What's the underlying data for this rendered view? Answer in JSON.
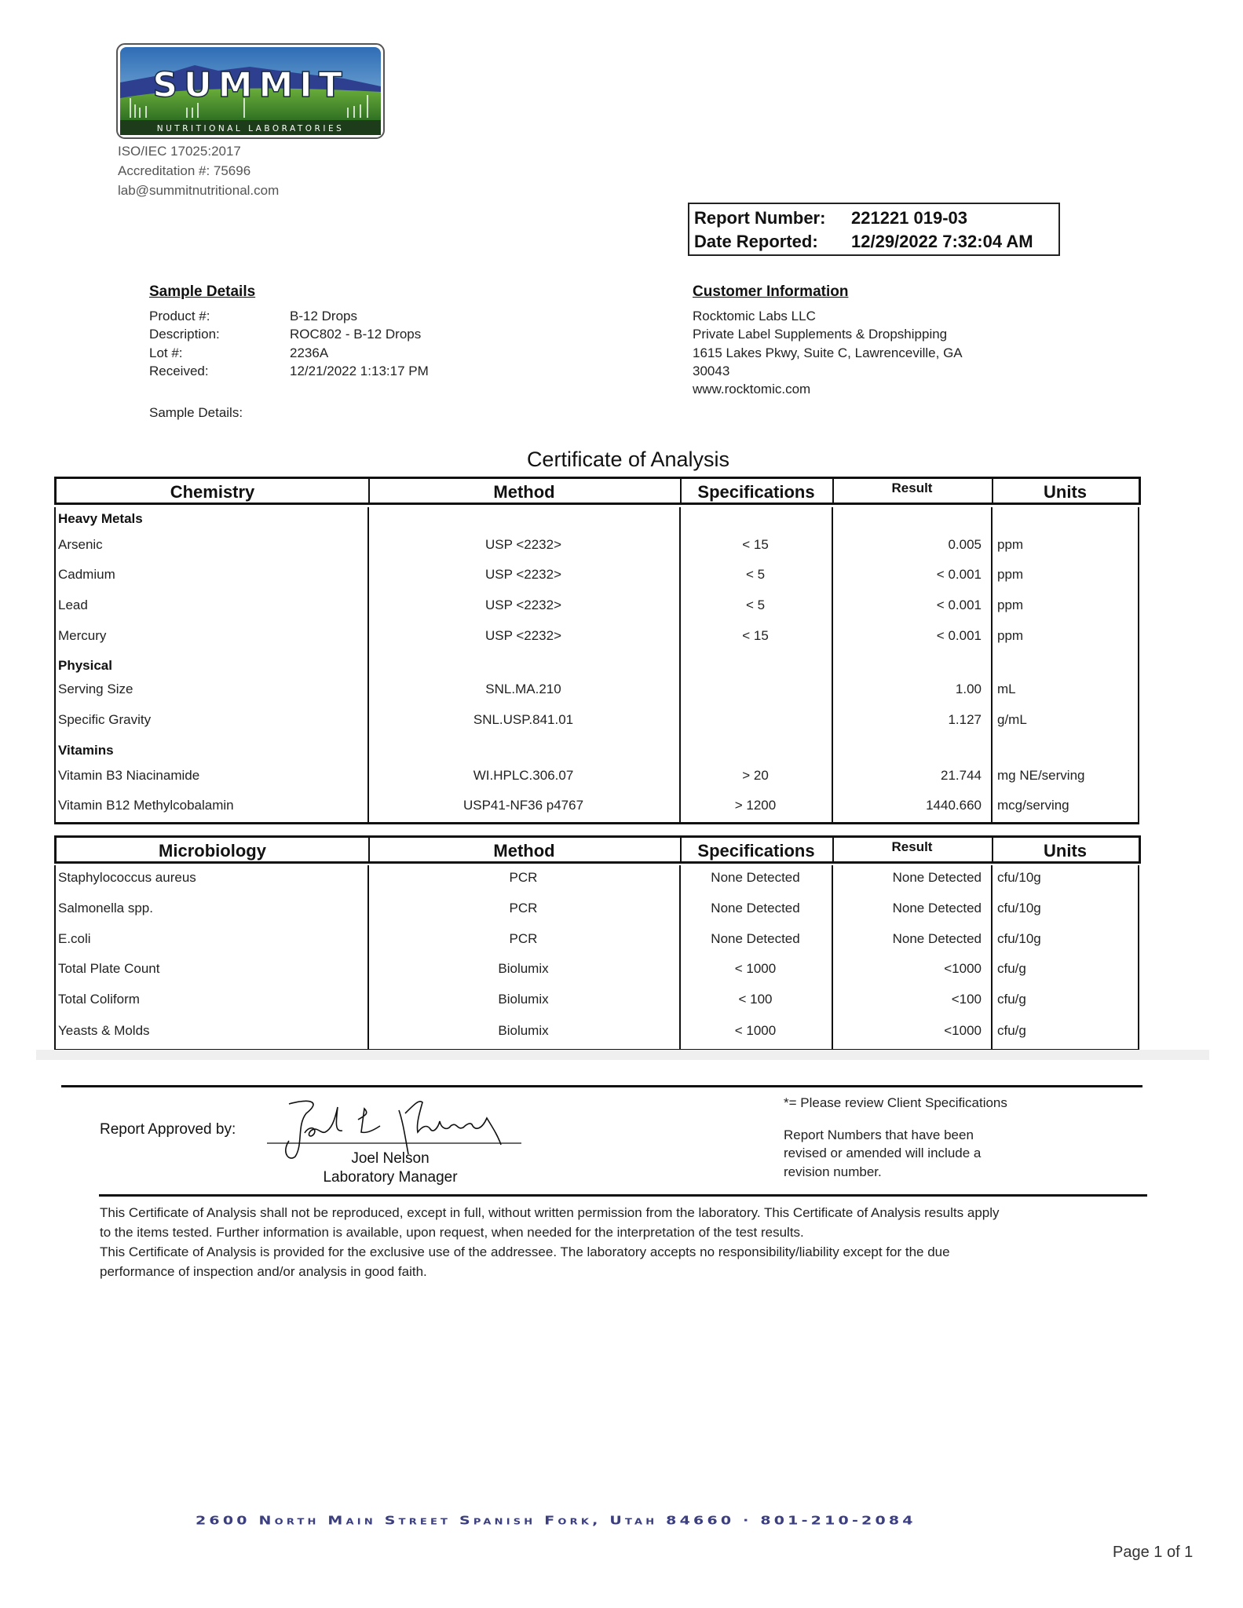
{
  "lab": {
    "logo_text": "SUMMIT",
    "logo_subtext": "NUTRITIONAL LABORATORIES",
    "iso": "ISO/IEC 17025:2017",
    "accreditation": "Accreditation #: 75696",
    "email": "lab@summitnutritional.com"
  },
  "report": {
    "number_label": "Report Number:",
    "number": "221221 019-03",
    "date_label": "Date Reported:",
    "date": "12/29/2022 7:32:04 AM"
  },
  "sample": {
    "heading": "Sample Details",
    "fields": [
      {
        "label": "Product #:",
        "value": "B-12 Drops"
      },
      {
        "label": "Description:",
        "value": "ROC802 - B-12 Drops"
      },
      {
        "label": "Lot #:",
        "value": "2236A"
      },
      {
        "label": "Received:",
        "value": "12/21/2022 1:13:17 PM"
      }
    ],
    "details_label": "Sample Details:"
  },
  "customer": {
    "heading": "Customer Information",
    "lines": [
      "Rocktomic Labs LLC",
      "Private Label Supplements & Dropshipping",
      "1615 Lakes Pkwy, Suite C, Lawrenceville, GA",
      "30043",
      "www.rocktomic.com"
    ]
  },
  "certificate_title": "Certificate of Analysis",
  "chemistry": {
    "headers": [
      "Chemistry",
      "Method",
      "Specifications",
      "Result",
      "Units"
    ],
    "rows": [
      {
        "section": "Heavy Metals"
      },
      {
        "name": "Arsenic",
        "method": "USP <2232>",
        "spec": "< 15",
        "result": "0.005",
        "units": "ppm"
      },
      {
        "name": "Cadmium",
        "method": "USP <2232>",
        "spec": "< 5",
        "result": "< 0.001",
        "units": "ppm"
      },
      {
        "name": "Lead",
        "method": "USP <2232>",
        "spec": "< 5",
        "result": "< 0.001",
        "units": "ppm"
      },
      {
        "name": "Mercury",
        "method": "USP <2232>",
        "spec": "< 15",
        "result": "< 0.001",
        "units": "ppm"
      },
      {
        "section": "Physical"
      },
      {
        "name": "Serving Size",
        "method": "SNL.MA.210",
        "spec": "",
        "result": "1.00",
        "units": "mL"
      },
      {
        "name": "Specific Gravity",
        "method": "SNL.USP.841.01",
        "spec": "",
        "result": "1.127",
        "units": "g/mL"
      },
      {
        "section": "Vitamins"
      },
      {
        "name": "Vitamin B3 Niacinamide",
        "method": "WI.HPLC.306.07",
        "spec": "> 20",
        "result": "21.744",
        "units": "mg NE/serving"
      },
      {
        "name": "Vitamin B12 Methylcobalamin",
        "method": "USP41-NF36 p4767",
        "spec": "> 1200",
        "result": "1440.660",
        "units": "mcg/serving"
      }
    ]
  },
  "microbiology": {
    "headers": [
      "Microbiology",
      "Method",
      "Specifications",
      "Result",
      "Units"
    ],
    "rows": [
      {
        "name": "Staphylococcus aureus",
        "method": "PCR",
        "spec": "None Detected",
        "result": "None Detected",
        "units": "cfu/10g"
      },
      {
        "name": "Salmonella spp.",
        "method": "PCR",
        "spec": "None Detected",
        "result": "None Detected",
        "units": "cfu/10g"
      },
      {
        "name": "E.coli",
        "method": "PCR",
        "spec": "None Detected",
        "result": "None Detected",
        "units": "cfu/10g"
      },
      {
        "name": "Total Plate Count",
        "method": "Biolumix",
        "spec": "< 1000",
        "result": "<1000",
        "units": "cfu/g"
      },
      {
        "name": "Total Coliform",
        "method": "Biolumix",
        "spec": "< 100",
        "result": "<100",
        "units": "cfu/g"
      },
      {
        "name": "Yeasts & Molds",
        "method": "Biolumix",
        "spec": "< 1000",
        "result": "<1000",
        "units": "cfu/g"
      }
    ]
  },
  "approval": {
    "label": "Report Approved by:",
    "signature": "Joel L Nelson",
    "name": "Joel Nelson",
    "title": "Laboratory Manager"
  },
  "notes": {
    "client_spec": "*= Please review Client Specifications",
    "revision": [
      "Report Numbers that have been",
      "revised or amended will include a",
      "revision number."
    ]
  },
  "disclaimer": [
    "This Certificate of Analysis shall not be reproduced, except in full, without written permission from the laboratory. This Certificate of Analysis results apply",
    "to the items tested. Further information is available, upon request, when needed for the interpretation of the test results.",
    "This Certificate of Analysis is provided for the exclusive use of the addressee. The laboratory accepts no responsibility/liability except for the due",
    "performance of inspection and/or analysis in good faith."
  ],
  "footer": {
    "address": "2600 North Main Street  Spanish Fork, Utah  84660 · 801-210-2084",
    "page": "Page 1 of 1"
  },
  "colors": {
    "address": "#3b3f80",
    "logo_green": "#3f8a2c",
    "logo_sky": "#3b7fc4"
  }
}
